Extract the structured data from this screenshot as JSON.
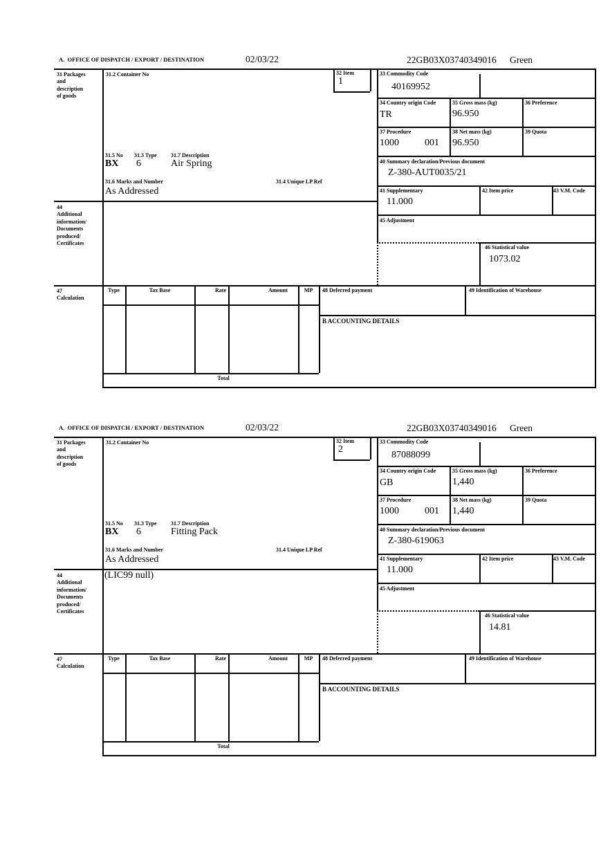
{
  "document": {
    "section_title": "A.  OFFICE OF DISPATCH / EXPORT / DESTINATION",
    "date": "02/03/22",
    "movement_reference": "22GB03X03740349016",
    "routing": "Green"
  },
  "labels": {
    "box31": "31 Packages\nand\ndescription\nof goods",
    "box31_2": "31.2 Container No",
    "box32": "32 Item",
    "box33": "33 Commodity Code",
    "box31_5": "31.5 No",
    "box31_3": "31.3 Type",
    "box31_7": "31.7 Description",
    "box31_6": "31.6 Marks and Number",
    "box31_4": "31.4 Unique LP Ref",
    "box34": "34 Country origin Code",
    "box35": "35 Gross mass (kg)",
    "box36": "36 Preference",
    "box37": "37 Procedure",
    "box38": "38 Net mass (kg)",
    "box39": "39 Quota",
    "box40": "40 Summary declaration/Previous document",
    "box41": "41 Supplementary",
    "box42": "42 Item price",
    "box43": "43 V.M. Code",
    "box44": "44\nAdditional\ninformation/\nDocuments\nproduced/\nCertificates",
    "box45": "45 Adjustment",
    "box46": "46 Statistical value",
    "box47": "47\nCalculation",
    "box48": "48 Deferred payment",
    "box49": "49 Identification of Warehouse",
    "accounting": "B ACCOUNTING DETAILS",
    "total": "Total",
    "calc_columns": [
      "Type",
      "Tax Base",
      "Rate",
      "Amount",
      "MP"
    ]
  },
  "items": [
    {
      "item_no": "1",
      "commodity_code": "40169952",
      "country_origin": "TR",
      "gross_mass": "96.950",
      "procedure": "1000",
      "procedure_ext": "001",
      "net_mass": "96.950",
      "package_no": "BX",
      "package_type": "6",
      "description": "Air Spring",
      "marks": "As Addressed",
      "summary_declaration": "Z-380-AUT0035/21",
      "supplementary": "11.000",
      "additional_info": "",
      "statistical_value": "1073.02"
    },
    {
      "item_no": "2",
      "commodity_code": "87088099",
      "country_origin": "GB",
      "gross_mass": "1,440",
      "procedure": "1000",
      "procedure_ext": "001",
      "net_mass": "1,440",
      "package_no": "BX",
      "package_type": "6",
      "description": "Fitting Pack",
      "marks": "As Addressed",
      "summary_declaration": "Z-380-619063",
      "supplementary": "11.000",
      "additional_info": "(LIC99 null)",
      "statistical_value": "14.81"
    }
  ]
}
